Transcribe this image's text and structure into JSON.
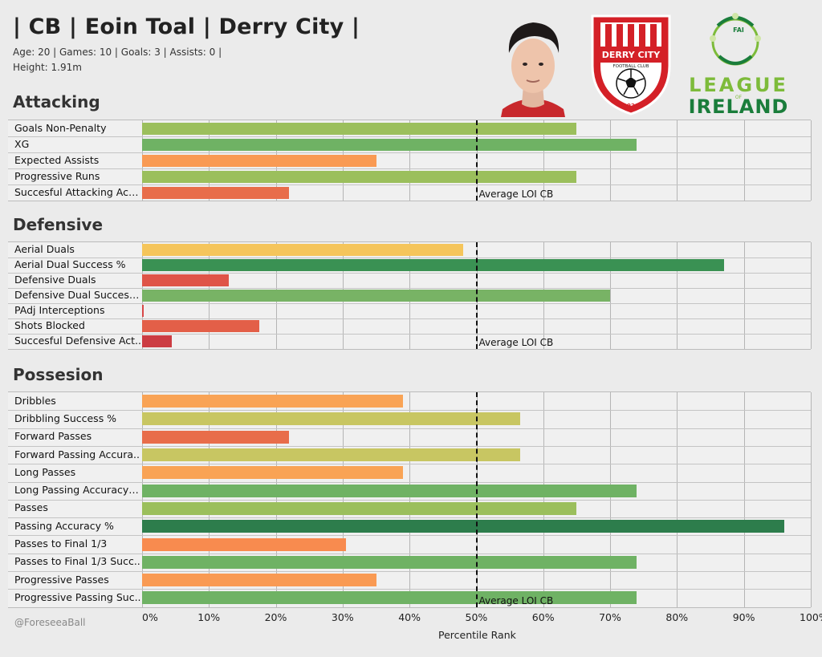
{
  "header": {
    "title": "| CB | Eoin Toal | Derry City |",
    "meta_line1": "Age: 20 | Games: 10 | Goals: 3 | Assists: 0 |",
    "meta_line2": "Height: 1.91m"
  },
  "logos": {
    "club_name": "DERRY CITY",
    "club_subtitle": "FOOTBALL CLUB",
    "club_year": "1928",
    "league_line1": "LEAGUE",
    "league_line2": "IRELAND",
    "league_of": "OF",
    "fai": "FAI"
  },
  "credit": "@ForeseeaBall",
  "chart_data": {
    "type": "bar",
    "orientation": "horizontal",
    "xlabel": "Percentile Rank",
    "xlim": [
      0,
      100
    ],
    "ticks": [
      "0%",
      "10%",
      "20%",
      "30%",
      "40%",
      "50%",
      "60%",
      "70%",
      "80%",
      "90%",
      "100%"
    ],
    "reference_line": {
      "value": 50,
      "label": "Average LOI CB"
    },
    "sections": [
      {
        "name": "Attacking",
        "categories": [
          "Goals Non-Penalty",
          "XG",
          "Expected Assists",
          "Progressive Runs",
          "Succesful Attacking Acti.."
        ],
        "values": [
          65,
          74,
          35,
          65,
          22
        ],
        "colors": [
          "#9bbf5c",
          "#6fb264",
          "#f99a53",
          "#9bbf5c",
          "#e86d4a"
        ]
      },
      {
        "name": "Defensive",
        "categories": [
          "Aerial Duals",
          "Aerial Dual Success %",
          "Defensive Duals",
          "Defensive Dual Success ..",
          "PAdj Interceptions",
          "Shots Blocked",
          "Succesful Defensive Act.."
        ],
        "values": [
          48,
          87,
          13,
          70,
          0.3,
          17.5,
          4.5
        ],
        "colors": [
          "#f5c55b",
          "#3a9153",
          "#df5448",
          "#78b365",
          "#d84848",
          "#e35f48",
          "#cc3c42"
        ]
      },
      {
        "name": "Possesion",
        "categories": [
          "Dribbles",
          "Dribbling Success %",
          "Forward Passes",
          "Forward Passing Accura..",
          "Long Passes",
          "Long Passing Accuracy %",
          "Passes",
          "Passing Accuracy %",
          "Passes to Final 1/3",
          "Passes to Final 1/3 Succ..",
          "Progressive Passes",
          "Progressive Passing Suc.."
        ],
        "values": [
          39,
          56.5,
          22,
          56.5,
          39,
          74,
          65,
          96,
          30.5,
          74,
          35,
          74
        ],
        "colors": [
          "#f9a355",
          "#c8c662",
          "#e86d4a",
          "#c8c662",
          "#f9a355",
          "#6fb264",
          "#9bbf5c",
          "#2d7d4c",
          "#f88b4f",
          "#6fb264",
          "#f99a53",
          "#6fb264"
        ]
      }
    ]
  }
}
